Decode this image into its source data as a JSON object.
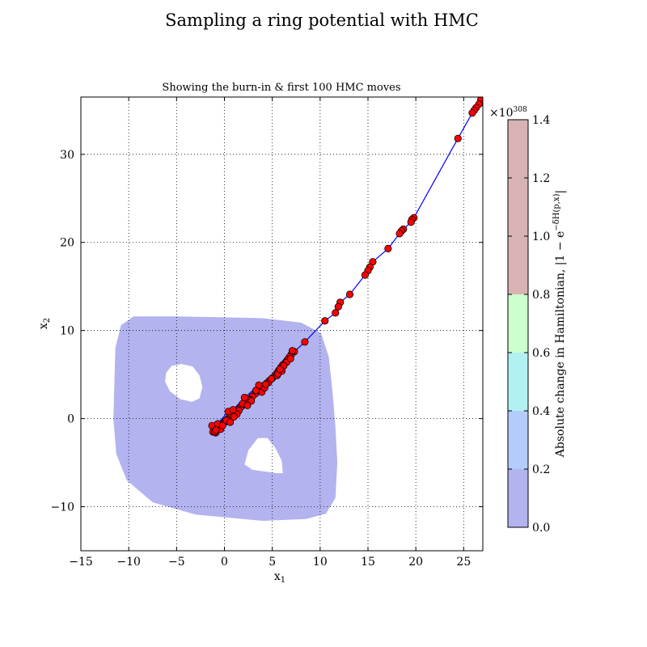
{
  "figure": {
    "title": "Sampling a ring potential with HMC"
  },
  "chart_data": {
    "type": "scatter",
    "title": "Showing the burn-in & first 100 HMC moves",
    "xlabel": "x",
    "xlabel_sub": "1",
    "ylabel": "x",
    "ylabel_sub": "2",
    "xlim": [
      -15,
      27
    ],
    "ylim": [
      -15,
      36.5
    ],
    "xticks": [
      -15,
      -10,
      -5,
      0,
      5,
      10,
      15,
      20,
      25
    ],
    "xtick_labels": [
      "−15",
      "−10",
      "−5",
      "0",
      "5",
      "10",
      "15",
      "20",
      "25"
    ],
    "yticks": [
      -10,
      0,
      10,
      20,
      30
    ],
    "ytick_labels": [
      "−10",
      "0",
      "10",
      "20",
      "30"
    ],
    "grid": true,
    "grid_style": "dotted",
    "background_region": {
      "description_value": 0.0,
      "color": "#b3b3f0",
      "outer": [
        [
          -9.5,
          11.6
        ],
        [
          -5,
          11.6
        ],
        [
          4,
          11.4
        ],
        [
          8,
          10.9
        ],
        [
          10.1,
          9.7
        ],
        [
          10.9,
          7
        ],
        [
          11.3,
          3
        ],
        [
          11.6,
          -1
        ],
        [
          11.8,
          -5
        ],
        [
          11.6,
          -9
        ],
        [
          10.6,
          -10.8
        ],
        [
          8.5,
          -11.4
        ],
        [
          4,
          -11.6
        ],
        [
          -3,
          -10.9
        ],
        [
          -7.5,
          -9.5
        ],
        [
          -10.2,
          -7
        ],
        [
          -11.3,
          -4
        ],
        [
          -11.6,
          0
        ],
        [
          -11.5,
          4
        ],
        [
          -11.4,
          8
        ],
        [
          -10.8,
          10.6
        ]
      ],
      "holes": [
        [
          [
            -6.1,
            5.2
          ],
          [
            -5.5,
            6.0
          ],
          [
            -4.5,
            6.2
          ],
          [
            -3.3,
            5.9
          ],
          [
            -2.6,
            4.9
          ],
          [
            -2.3,
            3.6
          ],
          [
            -2.6,
            2.3
          ],
          [
            -3.4,
            1.9
          ],
          [
            -4.6,
            2.2
          ],
          [
            -5.7,
            3.1
          ],
          [
            -6.2,
            4.2
          ]
        ],
        [
          [
            2.1,
            -5.2
          ],
          [
            2.5,
            -3.6
          ],
          [
            3.5,
            -2.2
          ],
          [
            4.5,
            -2.2
          ],
          [
            5.3,
            -3.3
          ],
          [
            6.0,
            -4.8
          ],
          [
            6.1,
            -6.2
          ],
          [
            5.5,
            -6.2
          ],
          [
            4.2,
            -6.0
          ],
          [
            2.9,
            -5.8
          ]
        ]
      ]
    },
    "series": [
      {
        "line_color": "#0000ff",
        "marker_color": "#ff0000",
        "marker_edge": "#000000",
        "x": [
          27,
          26.8,
          26.6,
          26.3,
          26.1,
          25.9,
          24.4,
          19.8,
          19.6,
          19.5,
          18.7,
          18.5,
          18.3,
          17.1,
          15.5,
          15.2,
          15.0,
          14.7,
          13.1,
          12.1,
          11.9,
          11.6,
          10.5,
          8.4,
          7.3,
          7.0,
          6.8,
          6.6,
          6.4,
          6.1,
          5.9,
          5.7,
          5.5,
          5.3,
          5.0,
          4.7,
          4.4,
          4.1,
          3.8,
          3.5,
          3.2,
          2.9,
          2.6,
          2.3,
          2.0,
          1.7,
          1.4,
          1.1,
          0.8,
          0.5,
          0.3,
          0.1,
          -0.1,
          -0.3,
          -0.5,
          -0.8,
          -1.0,
          -1.2,
          -1.3,
          -0.9,
          0.2,
          1.5,
          2.6,
          3.9,
          4.6,
          5.5,
          6.5,
          7.1,
          5.6,
          4.2,
          2.8,
          1.3,
          0.6,
          -0.4,
          -1.0,
          -0.7,
          0.4,
          1.9,
          3.3,
          4.9,
          6.2,
          6.9,
          6.0,
          3.6,
          2.1,
          0.9,
          -0.2,
          -0.9,
          1.0,
          2.4,
          4.3,
          5.8
        ],
        "y": [
          36.5,
          36.2,
          35.7,
          35.3,
          35.0,
          34.7,
          31.8,
          22.8,
          22.6,
          22.3,
          21.5,
          21.3,
          21.0,
          19.3,
          17.8,
          17.2,
          16.8,
          16.3,
          14.1,
          13.2,
          12.7,
          12.0,
          11.1,
          8.7,
          7.6,
          7.3,
          7.0,
          6.7,
          6.4,
          6.1,
          5.8,
          5.5,
          5.2,
          4.9,
          4.6,
          4.3,
          4.0,
          3.7,
          3.4,
          3.1,
          2.8,
          2.5,
          2.2,
          1.9,
          1.6,
          1.3,
          1.0,
          0.7,
          0.4,
          0.1,
          -0.1,
          -0.3,
          -0.5,
          -0.7,
          -0.9,
          -1.1,
          -1.3,
          -1.5,
          -0.8,
          -1.6,
          -0.2,
          0.9,
          2.1,
          3.0,
          4.1,
          4.9,
          6.4,
          7.7,
          5.1,
          3.5,
          2.0,
          0.5,
          -0.4,
          -1.2,
          -1.5,
          -0.6,
          0.8,
          1.7,
          3.2,
          4.5,
          6.0,
          6.8,
          5.4,
          3.8,
          2.4,
          1.0,
          -0.8,
          -1.3,
          0.2,
          1.5,
          3.9,
          5.6
        ]
      }
    ],
    "colorbar": {
      "label": "Absolute change in Hamiltonian, |1 − e",
      "label_sup": "−δH(p,x)",
      "label_end": "|",
      "multiplier_base": "×10",
      "multiplier_exp": "308",
      "ticks": [
        0.0,
        0.2,
        0.4,
        0.6,
        0.8,
        1.0,
        1.2,
        1.4
      ],
      "tick_labels": [
        "0.0",
        "0.2",
        "0.4",
        "0.6",
        "0.8",
        "1.0",
        "1.2",
        "1.4"
      ],
      "range": [
        0.0,
        1.4
      ],
      "bands": [
        {
          "from": 0.0,
          "to": 0.2,
          "color": "#b3b3f0"
        },
        {
          "from": 0.2,
          "to": 0.4,
          "color": "#b3ccfb"
        },
        {
          "from": 0.4,
          "to": 0.6,
          "color": "#b2f1f2"
        },
        {
          "from": 0.6,
          "to": 0.8,
          "color": "#ccffcc"
        },
        {
          "from": 0.8,
          "to": 1.4,
          "color": "#d9b3b3"
        }
      ]
    }
  }
}
